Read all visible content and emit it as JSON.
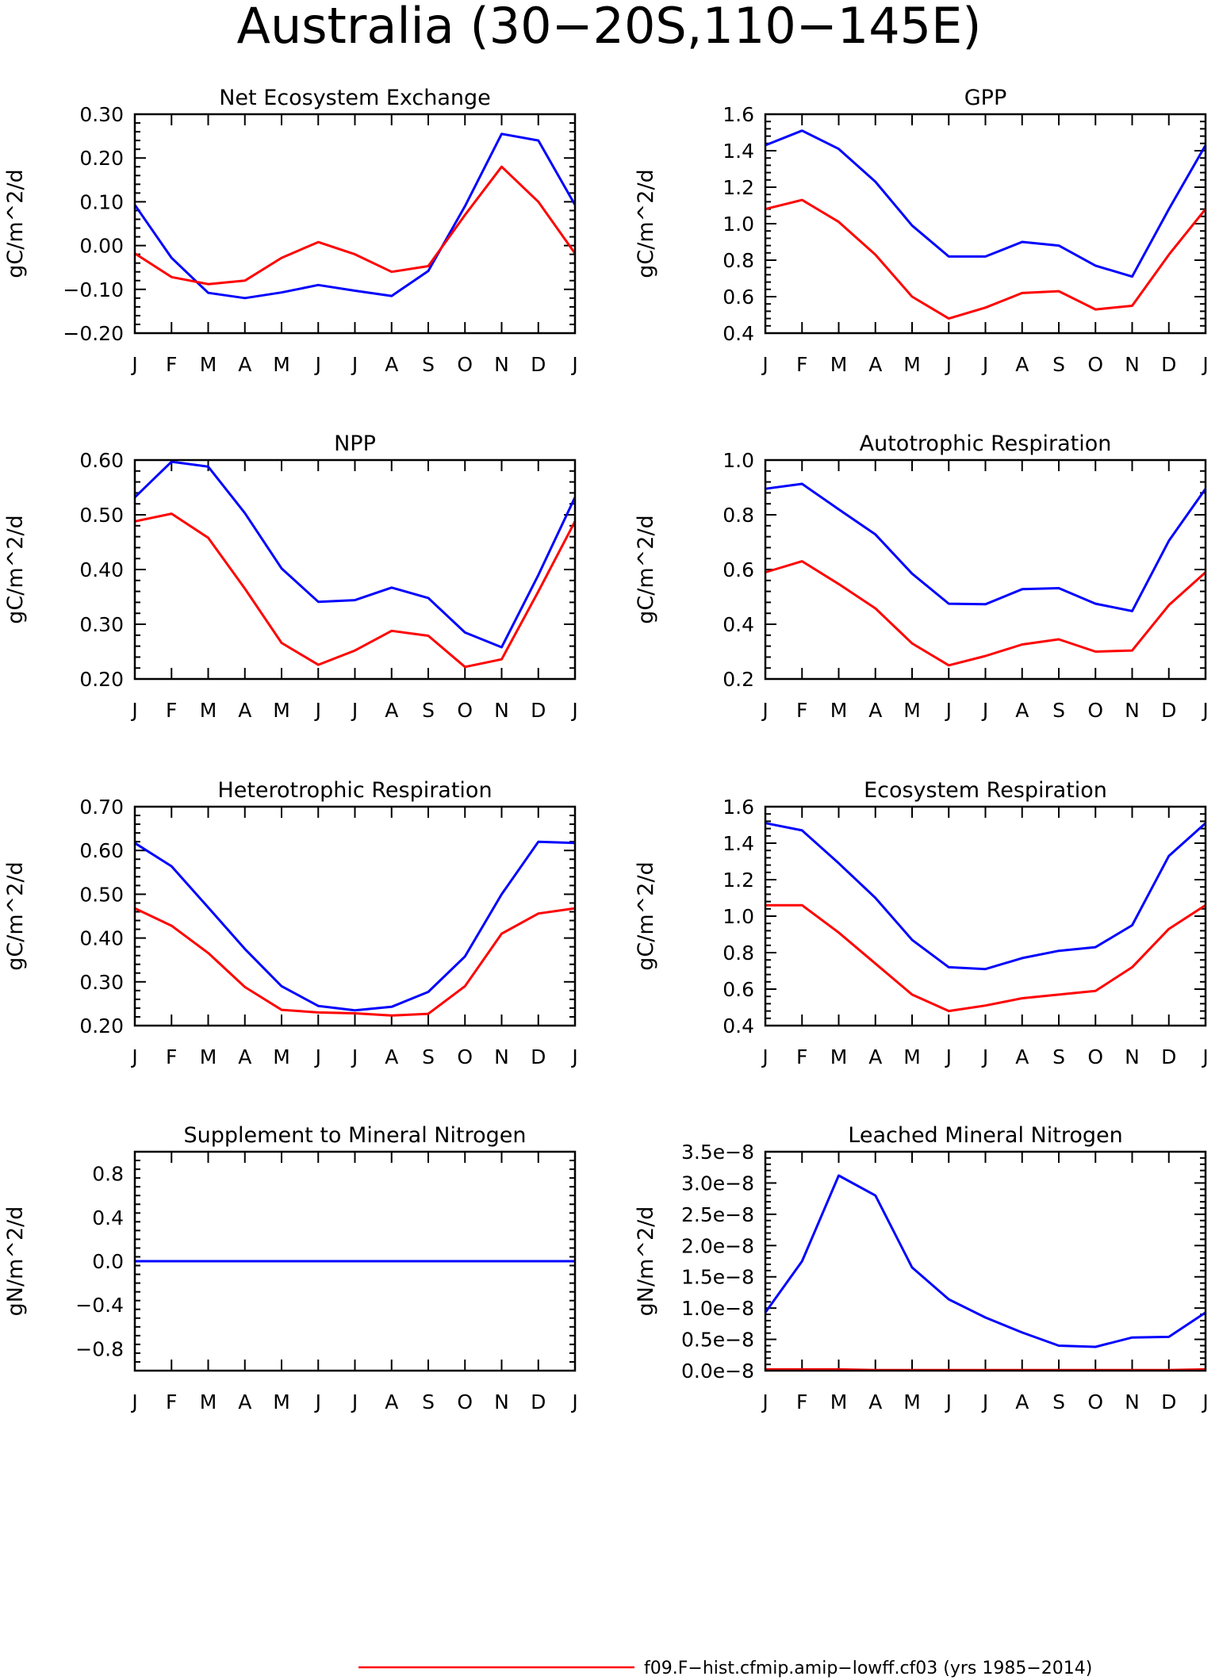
{
  "title": "Australia (30−20S,110−145E)",
  "colors": {
    "series_a": "#0000ff",
    "series_b": "#ff0000"
  },
  "months": [
    "J",
    "F",
    "M",
    "A",
    "M",
    "J",
    "J",
    "A",
    "S",
    "O",
    "N",
    "D",
    "J"
  ],
  "legend": {
    "label": "f09.F−hist.cfmip.amip−lowff.cf03 (yrs 1985−2014)",
    "color": "#ff0000"
  },
  "chart_data": [
    {
      "type": "line",
      "title": "Net Ecosystem Exchange",
      "ylabel": "gC/m^2/d",
      "ylim": [
        -0.2,
        0.3
      ],
      "yticks": [
        -0.2,
        -0.1,
        0.0,
        0.1,
        0.2,
        0.3
      ],
      "ytick_labels": [
        "−0.20",
        "−0.10",
        "0.00",
        "0.10",
        "0.20",
        "0.30"
      ],
      "x": [
        "J",
        "F",
        "M",
        "A",
        "M",
        "J",
        "J",
        "A",
        "S",
        "O",
        "N",
        "D",
        "J"
      ],
      "series": [
        {
          "color": "#0000ff",
          "values": [
            0.093,
            -0.028,
            -0.108,
            -0.12,
            -0.107,
            -0.09,
            -0.103,
            -0.115,
            -0.058,
            0.09,
            0.255,
            0.24,
            0.093
          ]
        },
        {
          "color": "#ff0000",
          "values": [
            -0.018,
            -0.072,
            -0.088,
            -0.08,
            -0.028,
            0.008,
            -0.02,
            -0.06,
            -0.047,
            0.07,
            0.18,
            0.1,
            -0.018
          ]
        }
      ]
    },
    {
      "type": "line",
      "title": "GPP",
      "ylabel": "gC/m^2/d",
      "ylim": [
        0.4,
        1.6
      ],
      "yticks": [
        0.4,
        0.6,
        0.8,
        1.0,
        1.2,
        1.4,
        1.6
      ],
      "ytick_labels": [
        "0.4",
        "0.6",
        "0.8",
        "1.0",
        "1.2",
        "1.4",
        "1.6"
      ],
      "x": [
        "J",
        "F",
        "M",
        "A",
        "M",
        "J",
        "J",
        "A",
        "S",
        "O",
        "N",
        "D",
        "J"
      ],
      "series": [
        {
          "color": "#0000ff",
          "values": [
            1.43,
            1.51,
            1.41,
            1.23,
            0.99,
            0.82,
            0.82,
            0.9,
            0.88,
            0.77,
            0.71,
            1.08,
            1.43
          ]
        },
        {
          "color": "#ff0000",
          "values": [
            1.08,
            1.13,
            1.01,
            0.83,
            0.6,
            0.48,
            0.54,
            0.62,
            0.63,
            0.53,
            0.55,
            0.83,
            1.08
          ]
        }
      ]
    },
    {
      "type": "line",
      "title": "NPP",
      "ylabel": "gC/m^2/d",
      "ylim": [
        0.2,
        0.6
      ],
      "yticks": [
        0.2,
        0.3,
        0.4,
        0.5,
        0.6
      ],
      "ytick_labels": [
        "0.20",
        "0.30",
        "0.40",
        "0.50",
        "0.60"
      ],
      "x": [
        "J",
        "F",
        "M",
        "A",
        "M",
        "J",
        "J",
        "A",
        "S",
        "O",
        "N",
        "D",
        "J"
      ],
      "series": [
        {
          "color": "#0000ff",
          "values": [
            0.532,
            0.597,
            0.588,
            0.503,
            0.402,
            0.341,
            0.344,
            0.367,
            0.348,
            0.285,
            0.258,
            0.39,
            0.532
          ]
        },
        {
          "color": "#ff0000",
          "values": [
            0.488,
            0.502,
            0.458,
            0.365,
            0.266,
            0.226,
            0.252,
            0.288,
            0.279,
            0.222,
            0.236,
            0.36,
            0.488
          ]
        }
      ]
    },
    {
      "type": "line",
      "title": "Autotrophic Respiration",
      "ylabel": "gC/m^2/d",
      "ylim": [
        0.2,
        1.0
      ],
      "yticks": [
        0.2,
        0.4,
        0.6,
        0.8,
        1.0
      ],
      "ytick_labels": [
        "0.2",
        "0.4",
        "0.6",
        "0.8",
        "1.0"
      ],
      "x": [
        "J",
        "F",
        "M",
        "A",
        "M",
        "J",
        "J",
        "A",
        "S",
        "O",
        "N",
        "D",
        "J"
      ],
      "series": [
        {
          "color": "#0000ff",
          "values": [
            0.895,
            0.913,
            0.82,
            0.728,
            0.585,
            0.475,
            0.473,
            0.528,
            0.532,
            0.475,
            0.448,
            0.705,
            0.895
          ]
        },
        {
          "color": "#ff0000",
          "values": [
            0.59,
            0.63,
            0.547,
            0.458,
            0.33,
            0.25,
            0.284,
            0.326,
            0.345,
            0.3,
            0.304,
            0.47,
            0.59
          ]
        }
      ]
    },
    {
      "type": "line",
      "title": "Heterotrophic Respiration",
      "ylabel": "gC/m^2/d",
      "ylim": [
        0.2,
        0.7
      ],
      "yticks": [
        0.2,
        0.3,
        0.4,
        0.5,
        0.6,
        0.7
      ],
      "ytick_labels": [
        "0.20",
        "0.30",
        "0.40",
        "0.50",
        "0.60",
        "0.70"
      ],
      "x": [
        "J",
        "F",
        "M",
        "A",
        "M",
        "J",
        "J",
        "A",
        "S",
        "O",
        "N",
        "D",
        "J"
      ],
      "series": [
        {
          "color": "#0000ff",
          "values": [
            0.617,
            0.564,
            0.47,
            0.375,
            0.29,
            0.245,
            0.235,
            0.243,
            0.277,
            0.358,
            0.5,
            0.62,
            0.617
          ]
        },
        {
          "color": "#ff0000",
          "values": [
            0.468,
            0.428,
            0.366,
            0.288,
            0.236,
            0.23,
            0.228,
            0.223,
            0.227,
            0.29,
            0.41,
            0.456,
            0.468
          ]
        }
      ]
    },
    {
      "type": "line",
      "title": "Ecosystem Respiration",
      "ylabel": "gC/m^2/d",
      "ylim": [
        0.4,
        1.6
      ],
      "yticks": [
        0.4,
        0.6,
        0.8,
        1.0,
        1.2,
        1.4,
        1.6
      ],
      "ytick_labels": [
        "0.4",
        "0.6",
        "0.8",
        "1.0",
        "1.2",
        "1.4",
        "1.6"
      ],
      "x": [
        "J",
        "F",
        "M",
        "A",
        "M",
        "J",
        "J",
        "A",
        "S",
        "O",
        "N",
        "D",
        "J"
      ],
      "series": [
        {
          "color": "#0000ff",
          "values": [
            1.51,
            1.47,
            1.29,
            1.1,
            0.87,
            0.72,
            0.71,
            0.77,
            0.81,
            0.83,
            0.95,
            1.33,
            1.51
          ]
        },
        {
          "color": "#ff0000",
          "values": [
            1.06,
            1.06,
            0.91,
            0.74,
            0.57,
            0.48,
            0.51,
            0.55,
            0.57,
            0.59,
            0.72,
            0.93,
            1.06
          ]
        }
      ]
    },
    {
      "type": "line",
      "title": "Supplement to Mineral Nitrogen",
      "ylabel": "gN/m^2/d",
      "ylim": [
        -1.0,
        1.0
      ],
      "yticks": [
        -0.8,
        -0.4,
        0.0,
        0.4,
        0.8
      ],
      "ytick_labels": [
        "−0.8",
        "−0.4",
        "0.0",
        "0.4",
        "0.8"
      ],
      "x": [
        "J",
        "F",
        "M",
        "A",
        "M",
        "J",
        "J",
        "A",
        "S",
        "O",
        "N",
        "D",
        "J"
      ],
      "series": [
        {
          "color": "#ff0000",
          "values": [
            0,
            0,
            0,
            0,
            0,
            0,
            0,
            0,
            0,
            0,
            0,
            0,
            0
          ]
        },
        {
          "color": "#0000ff",
          "values": [
            0,
            0,
            0,
            0,
            0,
            0,
            0,
            0,
            0,
            0,
            0,
            0,
            0
          ]
        }
      ]
    },
    {
      "type": "line",
      "title": "Leached Mineral Nitrogen",
      "ylabel": "gN/m^2/d",
      "ylim": [
        0.0,
        3.5e-08
      ],
      "yticks": [
        0.0,
        5e-09,
        1e-08,
        1.5e-08,
        2e-08,
        2.5e-08,
        3e-08,
        3.5e-08
      ],
      "ytick_labels": [
        "0.0e−8",
        "0.5e−8",
        "1.0e−8",
        "1.5e−8",
        "2.0e−8",
        "2.5e−8",
        "3.0e−8",
        "3.5e−8"
      ],
      "x": [
        "J",
        "F",
        "M",
        "A",
        "M",
        "J",
        "J",
        "A",
        "S",
        "O",
        "N",
        "D",
        "J"
      ],
      "series": [
        {
          "color": "#0000ff",
          "values": [
            9.3e-09,
            1.75e-08,
            3.12e-08,
            2.8e-08,
            1.65e-08,
            1.14e-08,
            8.5e-09,
            6.1e-09,
            4e-09,
            3.8e-09,
            5.3e-09,
            5.4e-09,
            9.3e-09
          ]
        },
        {
          "color": "#ff0000",
          "values": [
            2e-10,
            2e-10,
            2e-10,
            1e-10,
            1e-10,
            1e-10,
            1e-10,
            1e-10,
            1e-10,
            1e-10,
            1e-10,
            1e-10,
            2e-10
          ]
        }
      ]
    }
  ]
}
